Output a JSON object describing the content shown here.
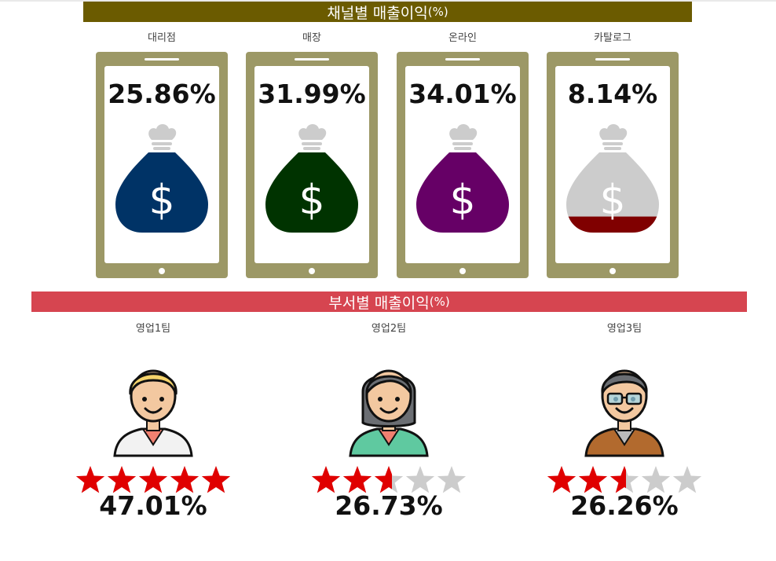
{
  "channel_section": {
    "title": "채널별 매출이익",
    "unit": "(%)",
    "accent_color": "#6b5b00",
    "phone_color": "#9c9866"
  },
  "department_section": {
    "title": "부서별 매출이익",
    "unit": "(%)",
    "accent_color": "#d64550",
    "star_color": "#e00000",
    "star_empty_color": "#cccccc"
  },
  "chart_data": [
    {
      "type": "pictograph",
      "title": "채널별 매출이익(%)",
      "categories": [
        "대리점",
        "매장",
        "온라인",
        "카탈로그"
      ],
      "values": [
        25.86,
        31.99,
        34.01,
        8.14
      ],
      "value_labels": [
        "25.86%",
        "31.99%",
        "34.01%",
        "8.14%"
      ],
      "colors": [
        "#003366",
        "#003300",
        "#660066",
        "#800000"
      ],
      "empty_color": "#cccccc",
      "icon": "money-bag-icon",
      "fill_fractions": [
        1.0,
        1.0,
        1.0,
        0.2
      ]
    },
    {
      "type": "pictograph",
      "title": "부서별 매출이익(%)",
      "categories": [
        "영업1팀",
        "영업2팀",
        "영업3팀"
      ],
      "values": [
        47.01,
        26.73,
        26.26
      ],
      "value_labels": [
        "47.01%",
        "26.73%",
        "26.26%"
      ],
      "icon": "star-icon",
      "star_total": 5,
      "stars_filled": [
        5,
        2.6,
        2.55
      ],
      "avatars": [
        "man-blond-avatar-icon",
        "woman-avatar-icon",
        "man-glasses-avatar-icon"
      ]
    }
  ]
}
